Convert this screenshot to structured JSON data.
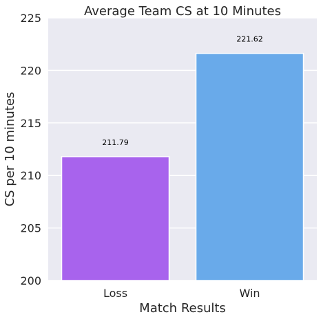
{
  "chart_data": {
    "type": "bar",
    "title": "Average Team CS at 10 Minutes",
    "xlabel": "Match Results",
    "ylabel": "CS per 10 minutes",
    "categories": [
      "Loss",
      "Win"
    ],
    "values": [
      211.79,
      221.62
    ],
    "value_labels": [
      "211.79",
      "221.62"
    ],
    "ylim": [
      200,
      225
    ],
    "yticks": [
      200,
      205,
      210,
      215,
      220,
      225
    ],
    "ytick_labels": [
      "200",
      "205",
      "210",
      "215",
      "220",
      "225"
    ],
    "bar_colors": [
      "#a863ed",
      "#69aaea"
    ],
    "plot_background": "#eaeaf2",
    "grid": true
  }
}
